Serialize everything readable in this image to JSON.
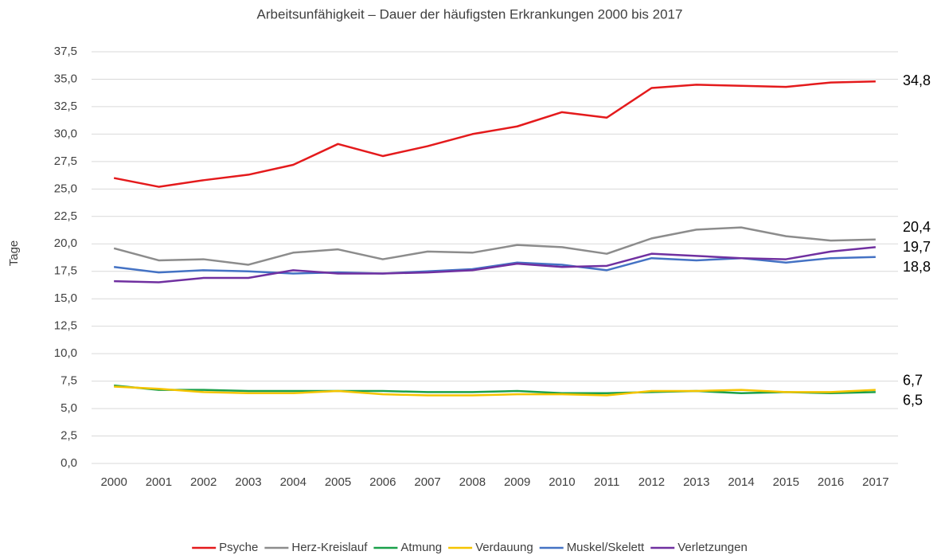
{
  "chart_data": {
    "type": "line",
    "title": "Arbeitsunfähigkeit – Dauer der häufigsten Erkrankungen 2000 bis 2017",
    "y_label": "Tage",
    "categories": [
      "2000",
      "2001",
      "2002",
      "2003",
      "2004",
      "2005",
      "2006",
      "2007",
      "2008",
      "2009",
      "2010",
      "2011",
      "2012",
      "2013",
      "2014",
      "2015",
      "2016",
      "2017"
    ],
    "ylim": [
      0,
      37.5
    ],
    "yticks": [
      {
        "value": 0,
        "label": "0,0"
      },
      {
        "value": 2.5,
        "label": "2,5"
      },
      {
        "value": 5,
        "label": "5,0"
      },
      {
        "value": 7.5,
        "label": "7,5"
      },
      {
        "value": 10,
        "label": "10,0"
      },
      {
        "value": 12.5,
        "label": "12,5"
      },
      {
        "value": 15,
        "label": "15,0"
      },
      {
        "value": 17.5,
        "label": "17,5"
      },
      {
        "value": 20,
        "label": "20,0"
      },
      {
        "value": 22.5,
        "label": "22,5"
      },
      {
        "value": 25,
        "label": "25,0"
      },
      {
        "value": 27.5,
        "label": "27,5"
      },
      {
        "value": 30,
        "label": "30,0"
      },
      {
        "value": 32.5,
        "label": "32,5"
      },
      {
        "value": 35,
        "label": "35,0"
      },
      {
        "value": 37.5,
        "label": "37,5"
      }
    ],
    "grid": true,
    "legend": "bottom",
    "series": [
      {
        "name": "Psyche",
        "color": "#e41a1c",
        "values": [
          26.0,
          25.2,
          25.8,
          26.3,
          27.2,
          29.1,
          28.0,
          28.9,
          30.0,
          30.7,
          32.0,
          31.5,
          34.2,
          34.5,
          34.4,
          34.3,
          34.7,
          34.8
        ],
        "value_labels": [
          null,
          null,
          null,
          null,
          null,
          null,
          null,
          null,
          null,
          null,
          null,
          null,
          null,
          null,
          null,
          null,
          null,
          "34,8"
        ]
      },
      {
        "name": "Herz-Kreislauf",
        "color": "#8c8c8c",
        "values": [
          19.6,
          18.5,
          18.6,
          18.1,
          19.2,
          19.5,
          18.6,
          19.3,
          19.2,
          19.9,
          19.7,
          19.1,
          20.5,
          21.3,
          21.5,
          20.7,
          20.3,
          20.4
        ],
        "value_labels": [
          null,
          null,
          null,
          null,
          null,
          null,
          null,
          null,
          null,
          null,
          null,
          null,
          null,
          null,
          null,
          null,
          null,
          "20,4"
        ]
      },
      {
        "name": "Atmung",
        "color": "#1aa04a",
        "values": [
          7.1,
          6.7,
          6.7,
          6.6,
          6.6,
          6.6,
          6.6,
          6.5,
          6.5,
          6.6,
          6.4,
          6.4,
          6.5,
          6.6,
          6.4,
          6.5,
          6.4,
          6.5
        ],
        "value_labels": [
          null,
          null,
          null,
          null,
          null,
          null,
          null,
          null,
          null,
          null,
          null,
          null,
          null,
          null,
          null,
          null,
          null,
          "6,5"
        ]
      },
      {
        "name": "Verdauung",
        "color": "#f5c400",
        "values": [
          7.0,
          6.8,
          6.5,
          6.4,
          6.4,
          6.6,
          6.3,
          6.2,
          6.2,
          6.3,
          6.3,
          6.2,
          6.6,
          6.6,
          6.7,
          6.5,
          6.5,
          6.7
        ],
        "value_labels": [
          null,
          null,
          null,
          null,
          null,
          null,
          null,
          null,
          null,
          null,
          null,
          null,
          null,
          null,
          null,
          null,
          null,
          "6,7"
        ]
      },
      {
        "name": "Muskel/Skelett",
        "color": "#4472c4",
        "values": [
          17.9,
          17.4,
          17.6,
          17.5,
          17.3,
          17.4,
          17.3,
          17.5,
          17.7,
          18.3,
          18.1,
          17.6,
          18.7,
          18.5,
          18.7,
          18.3,
          18.7,
          18.8
        ],
        "value_labels": [
          null,
          null,
          null,
          null,
          null,
          null,
          null,
          null,
          null,
          null,
          null,
          null,
          null,
          null,
          null,
          null,
          null,
          "18,8"
        ]
      },
      {
        "name": "Verletzungen",
        "color": "#7030a0",
        "values": [
          16.6,
          16.5,
          16.9,
          16.9,
          17.6,
          17.3,
          17.3,
          17.4,
          17.6,
          18.2,
          17.9,
          18.0,
          19.1,
          18.9,
          18.7,
          18.6,
          19.3,
          19.7
        ],
        "value_labels": [
          null,
          null,
          null,
          null,
          null,
          null,
          null,
          null,
          null,
          null,
          null,
          null,
          null,
          null,
          null,
          null,
          null,
          "19,7"
        ]
      }
    ]
  }
}
